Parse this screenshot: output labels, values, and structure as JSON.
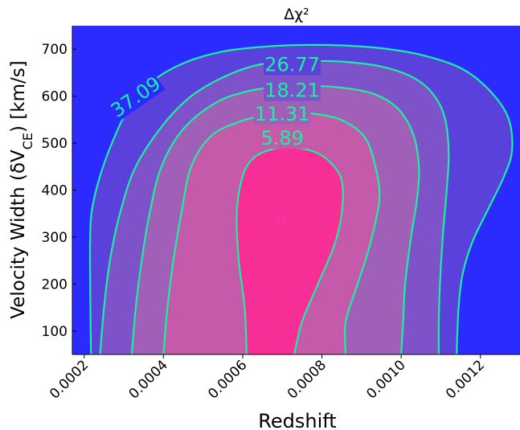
{
  "chart_data": {
    "type": "contour",
    "title": "Δχ²",
    "xlabel": "Redshift",
    "ylabel": "Velocity Width (δV_CE) [km/s]",
    "xlim": [
      0.00017,
      0.0013
    ],
    "ylim": [
      50,
      750
    ],
    "xticks": [
      {
        "value": 0.0002,
        "label": "0.0002"
      },
      {
        "value": 0.0004,
        "label": "0.0004"
      },
      {
        "value": 0.0006,
        "label": "0.0006"
      },
      {
        "value": 0.0008,
        "label": "0.0008"
      },
      {
        "value": 0.001,
        "label": "0.0010"
      },
      {
        "value": 0.0012,
        "label": "0.0012"
      }
    ],
    "yticks": [
      {
        "value": 100,
        "label": "100"
      },
      {
        "value": 200,
        "label": "200"
      },
      {
        "value": 300,
        "label": "300"
      },
      {
        "value": 400,
        "label": "400"
      },
      {
        "value": 500,
        "label": "500"
      },
      {
        "value": 600,
        "label": "600"
      },
      {
        "value": 700,
        "label": "700"
      }
    ],
    "best_fit": {
      "x": 0.000695,
      "y": 338,
      "marker": "diamond"
    },
    "colors": {
      "background": "#2b2bff",
      "line": "#19f0a0",
      "marker": "#ff33aa",
      "fills": [
        "#f62e95",
        "#c55aab",
        "#a060b8",
        "#7e52c8",
        "#5a41dc",
        "#2b2bff"
      ]
    },
    "contours": [
      {
        "level": "5.89",
        "label": {
          "x": 0.0007,
          "y": 510,
          "angle": 0
        },
        "points": [
          [
            0.00061,
            50
          ],
          [
            0.000605,
            150
          ],
          [
            0.00059,
            250
          ],
          [
            0.000585,
            350
          ],
          [
            0.0006,
            430
          ],
          [
            0.00063,
            470
          ],
          [
            0.00068,
            488
          ],
          [
            0.00073,
            490
          ],
          [
            0.00078,
            482
          ],
          [
            0.00082,
            460
          ],
          [
            0.00085,
            420
          ],
          [
            0.00085,
            350
          ],
          [
            0.00083,
            280
          ],
          [
            0.00079,
            200
          ],
          [
            0.00075,
            120
          ],
          [
            0.00073,
            50
          ]
        ]
      },
      {
        "level": "11.31",
        "label": {
          "x": 0.0007,
          "y": 562,
          "angle": 0
        },
        "points": [
          [
            0.0004,
            50
          ],
          [
            0.00041,
            150
          ],
          [
            0.000425,
            250
          ],
          [
            0.000445,
            350
          ],
          [
            0.00047,
            450
          ],
          [
            0.00052,
            515
          ],
          [
            0.00059,
            545
          ],
          [
            0.00066,
            560
          ],
          [
            0.00073,
            565
          ],
          [
            0.0008,
            560
          ],
          [
            0.00086,
            545
          ],
          [
            0.00091,
            510
          ],
          [
            0.000935,
            450
          ],
          [
            0.000945,
            380
          ],
          [
            0.00092,
            280
          ],
          [
            0.00089,
            200
          ],
          [
            0.00086,
            120
          ],
          [
            0.00086,
            50
          ]
        ]
      },
      {
        "level": "18.21",
        "label": {
          "x": 0.000725,
          "y": 612,
          "angle": 0
        },
        "points": [
          [
            0.00032,
            50
          ],
          [
            0.00033,
            150
          ],
          [
            0.000345,
            250
          ],
          [
            0.000365,
            350
          ],
          [
            0.000395,
            450
          ],
          [
            0.00045,
            530
          ],
          [
            0.00053,
            585
          ],
          [
            0.00061,
            610
          ],
          [
            0.00069,
            620
          ],
          [
            0.00077,
            622
          ],
          [
            0.00085,
            618
          ],
          [
            0.00093,
            605
          ],
          [
            0.00099,
            575
          ],
          [
            0.00103,
            520
          ],
          [
            0.001045,
            450
          ],
          [
            0.00104,
            380
          ],
          [
            0.001025,
            300
          ],
          [
            0.00101,
            200
          ],
          [
            0.001005,
            120
          ],
          [
            0.001,
            50
          ]
        ]
      },
      {
        "level": "26.77",
        "label": {
          "x": 0.000725,
          "y": 667,
          "angle": 0
        },
        "points": [
          [
            0.00024,
            50
          ],
          [
            0.00025,
            150
          ],
          [
            0.000265,
            250
          ],
          [
            0.00029,
            350
          ],
          [
            0.00033,
            450
          ],
          [
            0.0004,
            540
          ],
          [
            0.00047,
            600
          ],
          [
            0.00055,
            640
          ],
          [
            0.00063,
            665
          ],
          [
            0.0007,
            673
          ],
          [
            0.00078,
            675
          ],
          [
            0.00086,
            673
          ],
          [
            0.00095,
            663
          ],
          [
            0.00103,
            640
          ],
          [
            0.00108,
            605
          ],
          [
            0.00111,
            555
          ],
          [
            0.00112,
            480
          ],
          [
            0.001115,
            400
          ],
          [
            0.001105,
            300
          ],
          [
            0.001098,
            200
          ],
          [
            0.001095,
            120
          ],
          [
            0.001095,
            50
          ]
        ]
      },
      {
        "level": "37.09",
        "label": {
          "x": 0.00033,
          "y": 598,
          "angle": -35
        },
        "points": [
          [
            0.000217,
            50
          ],
          [
            0.000215,
            200
          ],
          [
            0.000215,
            300
          ],
          [
            0.00022,
            360
          ],
          [
            0.00024,
            430
          ],
          [
            0.00027,
            500
          ],
          [
            0.00031,
            570
          ],
          [
            0.00037,
            630
          ],
          [
            0.00045,
            670
          ],
          [
            0.00055,
            695
          ],
          [
            0.00065,
            705
          ],
          [
            0.00075,
            709
          ],
          [
            0.00085,
            708
          ],
          [
            0.00095,
            702
          ],
          [
            0.00105,
            688
          ],
          [
            0.00115,
            660
          ],
          [
            0.00122,
            615
          ],
          [
            0.00127,
            555
          ],
          [
            0.00128,
            485
          ],
          [
            0.00126,
            430
          ],
          [
            0.00122,
            360
          ],
          [
            0.00118,
            290
          ],
          [
            0.001155,
            220
          ],
          [
            0.001145,
            150
          ],
          [
            0.00114,
            50
          ]
        ]
      }
    ]
  }
}
